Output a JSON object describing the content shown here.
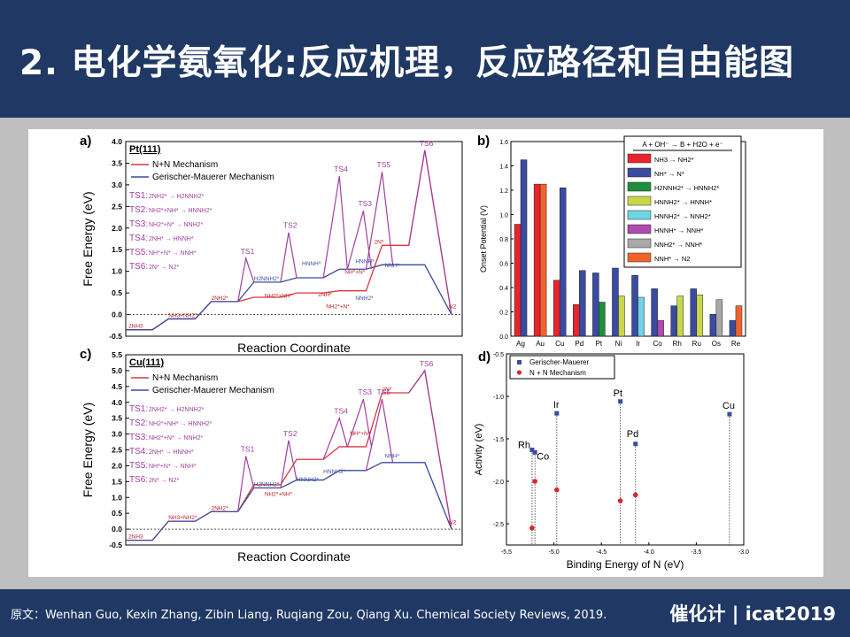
{
  "header": {
    "title": "2. 电化学氨氧化:反应机理，反应路径和自由能图"
  },
  "footer": {
    "source": "原文：Wenhan Guo, Kexin Zhang, Zibin Liang, Ruqiang Zou, Qiang Xu. Chemical Society Reviews, 2019.",
    "brand": "催化计 | icat2019"
  },
  "panels": {
    "a": {
      "letter": "a)",
      "surface": "Pt(111)"
    },
    "b": {
      "letter": "b)"
    },
    "c": {
      "letter": "c)",
      "surface": "Cu(111)"
    },
    "d": {
      "letter": "d)"
    }
  },
  "common": {
    "legend_nn": "N+N Mechanism",
    "legend_gm": "Gerischer-Mauerer Mechanism",
    "ylabel_energy": "Free Energy (eV)",
    "xlabel_rc": "Reaction Coordinate",
    "ts_list": [
      {
        "ts": "TS1:",
        "rxn": "2NH2* → H2NNH2*"
      },
      {
        "ts": "TS2:",
        "rxn": "NH2*+NH* → HNNH2*"
      },
      {
        "ts": "TS3:",
        "rxn": "NH2*+N* → NNH2*"
      },
      {
        "ts": "TS4:",
        "rxn": "2NH* → HNNH*"
      },
      {
        "ts": "TS5:",
        "rxn": "NH*+N* → NNH*"
      },
      {
        "ts": "TS6:",
        "rxn": "2N* → N2*"
      }
    ]
  },
  "colors": {
    "nn": "#d9363e",
    "gm": "#3a4ba0",
    "ts": "#a040a0"
  },
  "chart_data": [
    {
      "type": "line",
      "panel": "a",
      "ylim": [
        -0.5,
        4.0
      ],
      "yticks": [
        -0.5,
        0.0,
        0.5,
        1.0,
        1.5,
        2.0,
        2.5,
        3.0,
        3.5,
        4.0
      ],
      "ylabel": "Free Energy (eV)",
      "xlabel": "Reaction Coordinate",
      "series": [
        {
          "name": "N+N Mechanism",
          "x": [
            0,
            1,
            1.6,
            2.6,
            3.2,
            4.2,
            4.8,
            5.8,
            6.4,
            7.4,
            8.0,
            9.0,
            9.6,
            10.6,
            11.2,
            12.2
          ],
          "y": [
            -0.35,
            -0.35,
            -0.1,
            -0.1,
            0.3,
            0.3,
            0.4,
            0.4,
            0.5,
            0.5,
            0.55,
            0.55,
            1.6,
            1.6,
            3.8,
            0.0
          ]
        },
        {
          "name": "Gerischer-Mauerer Mechanism",
          "x": [
            0,
            1,
            1.6,
            2.6,
            3.2,
            4.2,
            4.8,
            5.8,
            6.4,
            7.4,
            8.0,
            9.0,
            9.6,
            10.6,
            11.2,
            12.2
          ],
          "y": [
            -0.35,
            -0.35,
            -0.1,
            -0.1,
            0.3,
            0.3,
            0.75,
            0.75,
            0.85,
            0.85,
            1.05,
            1.05,
            1.15,
            1.15,
            1.15,
            0.0
          ]
        }
      ]
    },
    {
      "type": "bar",
      "panel": "b",
      "title": "A + OH⁻ → B + H2O + e⁻",
      "ylabel": "Onset Potential (V)",
      "ylim": [
        0.0,
        1.6
      ],
      "yticks": [
        0.0,
        0.2,
        0.4,
        0.6,
        0.8,
        1.0,
        1.2,
        1.4,
        1.6
      ],
      "categories": [
        "Ag",
        "Au",
        "Cu",
        "Pd",
        "Pt",
        "Ni",
        "Ir",
        "Co",
        "Rh",
        "Ru",
        "Os",
        "Re"
      ],
      "series": [
        {
          "name": "NH3 → NH2*",
          "color": "#e8242c",
          "values": [
            0.92,
            1.25,
            0.46,
            0.26,
            0,
            0,
            0,
            0,
            0,
            0,
            0,
            0
          ]
        },
        {
          "name": "NH* → N*",
          "color": "#3a4ba0",
          "values": [
            1.45,
            0,
            1.22,
            0.54,
            0.52,
            0.56,
            0.5,
            0.39,
            0.25,
            0.39,
            0.18,
            0.13
          ]
        },
        {
          "name": "H2NNH2* → HNNH2*",
          "color": "#1f8f3a",
          "values": [
            0,
            0,
            0,
            0,
            0.28,
            0,
            0,
            0,
            0,
            0,
            0,
            0
          ]
        },
        {
          "name": "HNNH2* → HNNH*",
          "color": "#c8d84a",
          "values": [
            0,
            0,
            0,
            0,
            0,
            0.33,
            0,
            0,
            0.33,
            0.34,
            0,
            0
          ]
        },
        {
          "name": "HNNH2* → NNH2*",
          "color": "#6fd4e6",
          "values": [
            0,
            0,
            0,
            0,
            0,
            0,
            0.32,
            0,
            0,
            0,
            0,
            0
          ]
        },
        {
          "name": "HNNH* → NNH*",
          "color": "#b049b0",
          "values": [
            0,
            0,
            0,
            0,
            0,
            0,
            0,
            0.13,
            0,
            0,
            0,
            0
          ]
        },
        {
          "name": "NNH2* → NNH*",
          "color": "#a8a8a8",
          "values": [
            0,
            0,
            0,
            0,
            0,
            0,
            0,
            0,
            0,
            0,
            0.3,
            0
          ]
        },
        {
          "name": "NNH* → N2",
          "color": "#f0642c",
          "values": [
            0,
            1.25,
            0,
            0,
            0,
            0,
            0,
            0,
            0,
            0,
            0,
            0.25
          ]
        }
      ]
    },
    {
      "type": "line",
      "panel": "c",
      "ylim": [
        -0.5,
        5.5
      ],
      "yticks": [
        -0.5,
        0.0,
        0.5,
        1.0,
        1.5,
        2.0,
        2.5,
        3.0,
        3.5,
        4.0,
        4.5,
        5.0,
        5.5
      ],
      "ylabel": "Free Energy (eV)",
      "xlabel": "Reaction Coordinate",
      "series": [
        {
          "name": "N+N Mechanism",
          "x": [
            0,
            1,
            1.6,
            2.6,
            3.2,
            4.2,
            4.8,
            5.8,
            6.4,
            7.4,
            8.0,
            9.0,
            9.6,
            10.6,
            11.2,
            12.2
          ],
          "y": [
            -0.35,
            -0.35,
            0.25,
            0.25,
            0.55,
            0.55,
            1.4,
            1.4,
            2.2,
            2.2,
            2.6,
            2.6,
            4.3,
            4.3,
            5.0,
            0.0
          ]
        },
        {
          "name": "Gerischer-Mauerer Mechanism",
          "x": [
            0,
            1,
            1.6,
            2.6,
            3.2,
            4.2,
            4.8,
            5.8,
            6.4,
            7.4,
            8.0,
            9.0,
            9.6,
            10.6,
            11.2,
            12.2
          ],
          "y": [
            -0.35,
            -0.35,
            0.25,
            0.25,
            0.55,
            0.55,
            1.3,
            1.3,
            1.55,
            1.55,
            1.85,
            1.85,
            2.1,
            2.1,
            2.1,
            0.0
          ]
        }
      ]
    },
    {
      "type": "scatter",
      "panel": "d",
      "xlabel": "Binding Energy of N (eV)",
      "ylabel": "Activity (eV)",
      "xlim": [
        -5.5,
        -3.0
      ],
      "ylim": [
        -2.75,
        -0.5
      ],
      "xticks": [
        -5.5,
        -5.0,
        -4.5,
        -4.0,
        -3.5,
        -3.0
      ],
      "yticks": [
        -0.5,
        -1.0,
        -1.5,
        -2.0,
        -2.5
      ],
      "series": [
        {
          "name": "Gerischer-Mauerer",
          "color": "#3a4ba0",
          "points": [
            {
              "label": "Rh",
              "x": -5.23,
              "y": -1.63
            },
            {
              "label": "Co",
              "x": -5.2,
              "y": -1.66
            },
            {
              "label": "Ir",
              "x": -4.97,
              "y": -1.2
            },
            {
              "label": "Pt",
              "x": -4.3,
              "y": -1.06
            },
            {
              "label": "Pd",
              "x": -4.14,
              "y": -1.56
            },
            {
              "label": "Cu",
              "x": -3.15,
              "y": -1.21
            }
          ]
        },
        {
          "name": "N + N Mechanism",
          "color": "#d9262c",
          "points": [
            {
              "label": "Rh",
              "x": -5.23,
              "y": -2.55
            },
            {
              "label": "Co",
              "x": -5.2,
              "y": -2.0
            },
            {
              "label": "Ir",
              "x": -4.97,
              "y": -2.1
            },
            {
              "label": "Pt",
              "x": -4.3,
              "y": -2.23
            },
            {
              "label": "Pd",
              "x": -4.14,
              "y": -2.16
            }
          ]
        }
      ]
    }
  ]
}
